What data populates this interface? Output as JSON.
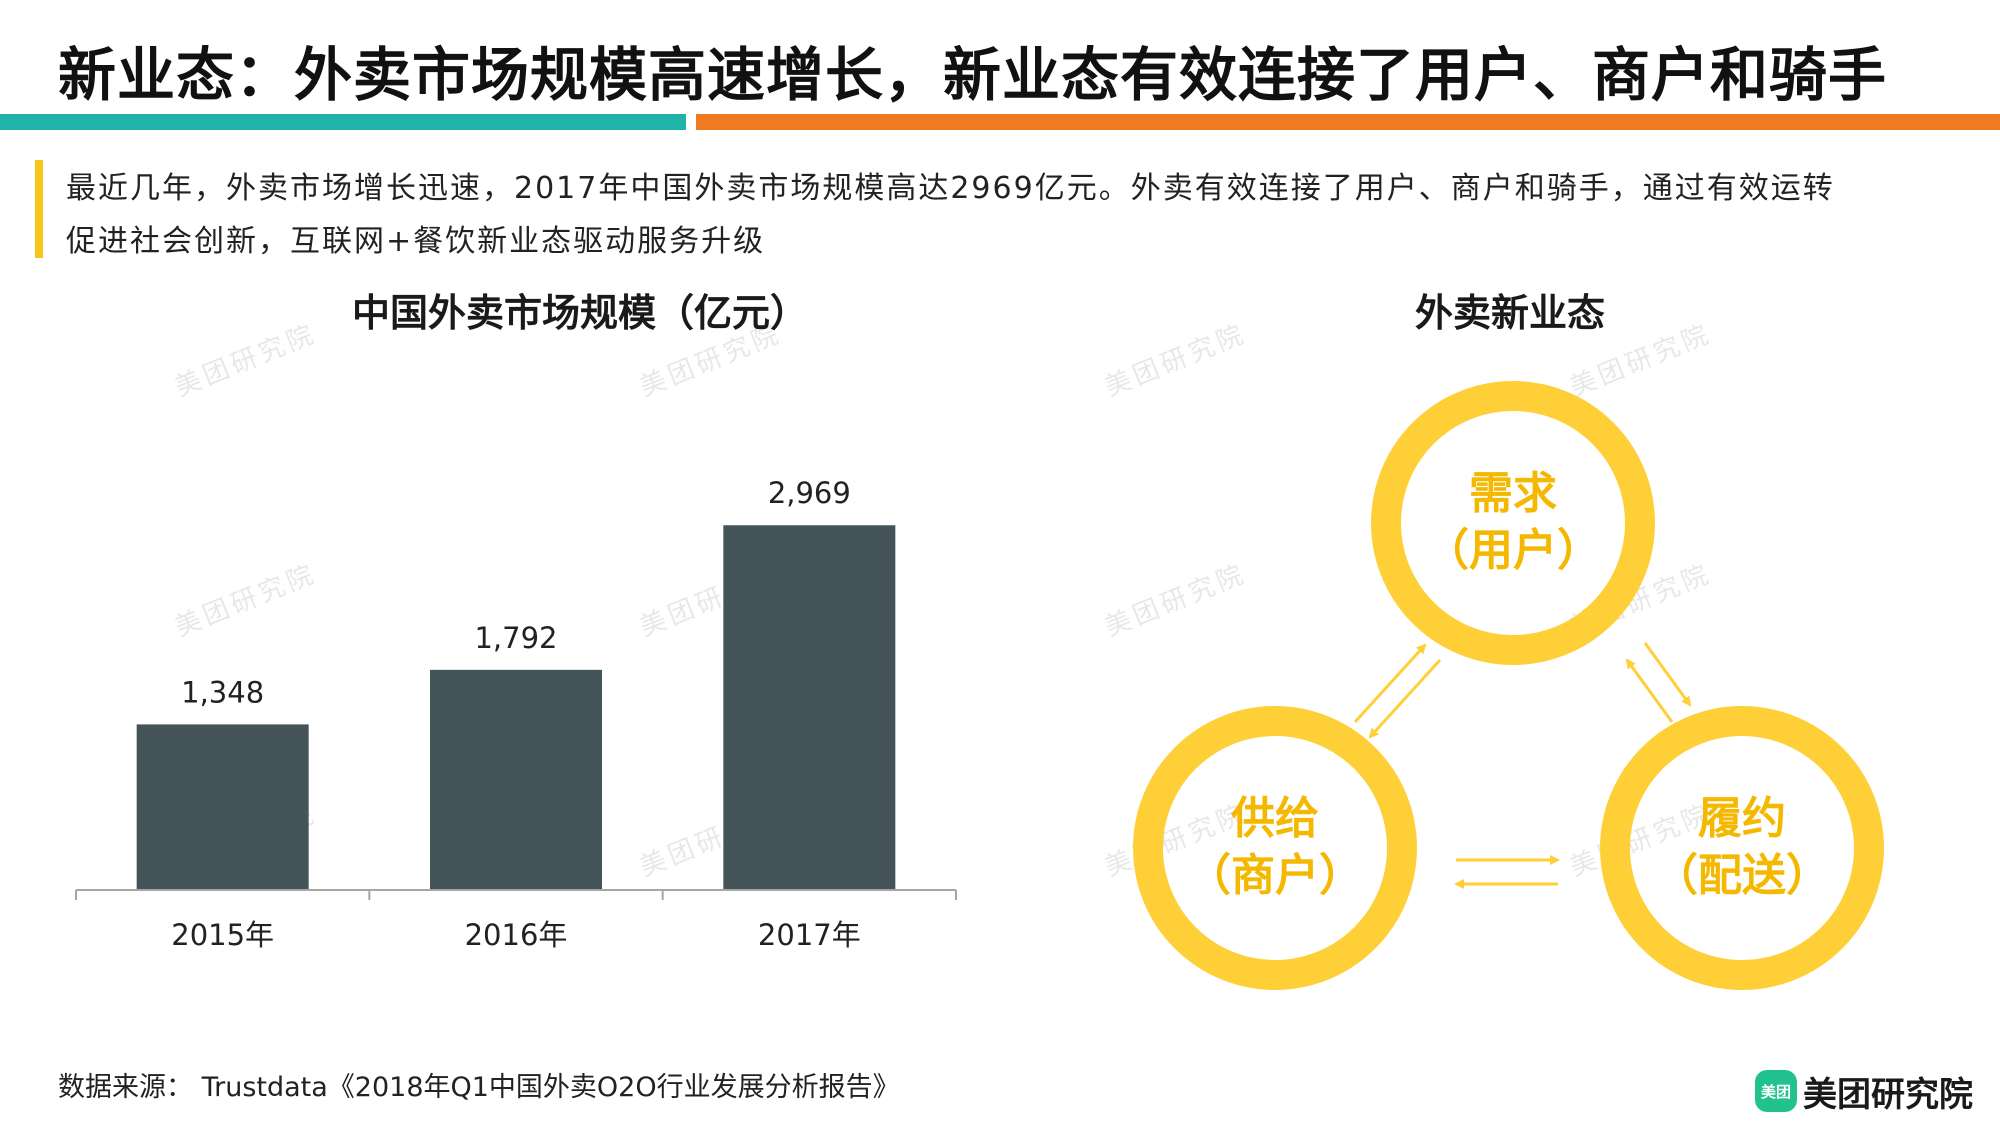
{
  "header": {
    "title": "新业态：外卖市场规模高速增长，新业态有效连接了用户、商户和骑手",
    "accent_colors": [
      "#22b3a8",
      "#ef7a22"
    ]
  },
  "description": {
    "line1": "最近几年，外卖市场增长迅速，2017年中国外卖市场规模高达2969亿元。外卖有效连接了用户、商户和骑手，通过有效运转",
    "line2": "促进社会创新，互联网+餐饮新业态驱动服务升级"
  },
  "chart_data": {
    "type": "bar",
    "title": "中国外卖市场规模（亿元）",
    "categories": [
      "2015年",
      "2016年",
      "2017年"
    ],
    "values": [
      1348,
      1792,
      2969
    ],
    "value_labels": [
      "1,348",
      "1,792",
      "2,969"
    ],
    "bar_color": "#455458",
    "ylim": [
      0,
      3500
    ],
    "grid": false
  },
  "diagram": {
    "title": "外卖新业态",
    "ring_color": "#ffcf38",
    "text_color": "#f5b800",
    "nodes": {
      "demand": {
        "line1": "需求",
        "line2": "（用户）"
      },
      "supply": {
        "line1": "供给",
        "line2": "（商户）"
      },
      "delivery": {
        "line1": "履约",
        "line2": "（配送）"
      }
    }
  },
  "footer": {
    "source": "数据来源： Trustdata《2018年Q1中国外卖O2O行业发展分析报告》",
    "logo_mark": "美团",
    "logo_text": "美团研究院",
    "logo_color": "#21c28e"
  },
  "watermark": "美团研究院"
}
